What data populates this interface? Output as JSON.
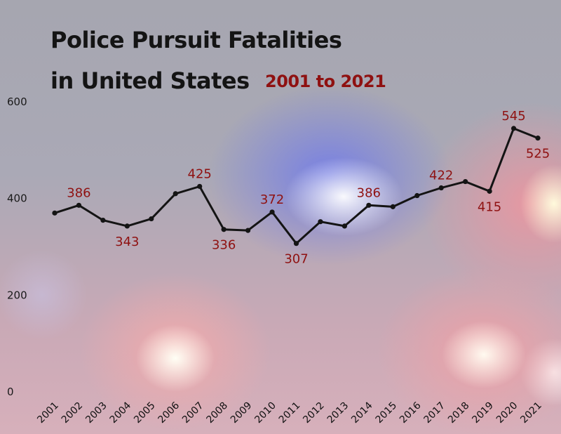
{
  "header": {
    "title_line1": "Police Pursuit Fatalities",
    "title_line2": "in United States",
    "subtitle": "2001 to 2021"
  },
  "colors": {
    "line": "#141414",
    "data_label": "#8f1111",
    "title": "#141414"
  },
  "chart_data": {
    "type": "line",
    "title": "Police Pursuit Fatalities in United States",
    "subtitle": "2001 to 2021",
    "xlabel": "",
    "ylabel": "",
    "ylim": [
      0,
      600
    ],
    "yticks": [
      0,
      200,
      400,
      600
    ],
    "grid": false,
    "legend": "none",
    "x": [
      "2001",
      "2002",
      "2003",
      "2004",
      "2005",
      "2006",
      "2007",
      "2008",
      "2009",
      "2010",
      "2011",
      "2012",
      "2013",
      "2014",
      "2015",
      "2016",
      "2017",
      "2018",
      "2019",
      "2020",
      "2021"
    ],
    "series": [
      {
        "values": [
          370,
          386,
          355,
          343,
          358,
          410,
          425,
          336,
          334,
          372,
          307,
          352,
          343,
          386,
          383,
          406,
          422,
          435,
          415,
          545,
          525
        ]
      }
    ],
    "data_labels": [
      {
        "x": "2002",
        "text": "386",
        "position": "above"
      },
      {
        "x": "2004",
        "text": "343",
        "position": "below"
      },
      {
        "x": "2007",
        "text": "425",
        "position": "above"
      },
      {
        "x": "2008",
        "text": "336",
        "position": "below"
      },
      {
        "x": "2010",
        "text": "372",
        "position": "above"
      },
      {
        "x": "2011",
        "text": "307",
        "position": "below"
      },
      {
        "x": "2014",
        "text": "386",
        "position": "above"
      },
      {
        "x": "2017",
        "text": "422",
        "position": "above"
      },
      {
        "x": "2019",
        "text": "415",
        "position": "below"
      },
      {
        "x": "2020",
        "text": "545",
        "position": "above"
      },
      {
        "x": "2021",
        "text": "525",
        "position": "below"
      }
    ]
  }
}
